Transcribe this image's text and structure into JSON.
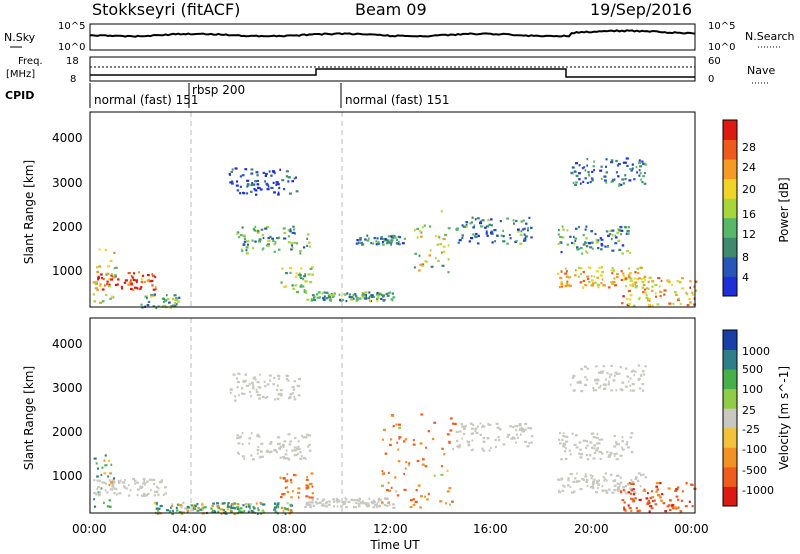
{
  "header": {
    "station": "Stokkseyri (fitACF)",
    "beam": "Beam 09",
    "date": "19/Sep/2016"
  },
  "noise_panel": {
    "left_label": "N.Sky",
    "left_ticks": [
      "10^5",
      "10^0"
    ],
    "right_ticks": [
      "10^5",
      "10^0"
    ],
    "right_label": "N.Search"
  },
  "freq_panel": {
    "left_label_1": "Freq.",
    "left_label_2": "[MHz]",
    "left_ticks": [
      "18",
      "8"
    ],
    "right_ticks": [
      "60",
      "0"
    ],
    "right_label": "Nave"
  },
  "cpid": {
    "label": "CPID",
    "segments": [
      "normal (fast) 151",
      "rbsp 200",
      "normal (fast) 151"
    ]
  },
  "time_axis": {
    "label": "Time UT",
    "ticks": [
      "00:00",
      "04:00",
      "08:00",
      "12:00",
      "16:00",
      "20:00",
      "00:00"
    ]
  },
  "range_axis": {
    "label": "Slant Range [km]",
    "ticks": [
      "1000",
      "2000",
      "3000",
      "4000"
    ]
  },
  "power_colorbar": {
    "label": "Power [dB]",
    "ticks": [
      "4",
      "8",
      "12",
      "16",
      "20",
      "24",
      "28"
    ],
    "colors": [
      "#1f2fd8",
      "#2856b8",
      "#3f8a6f",
      "#58b86a",
      "#a6d63a",
      "#f0d428",
      "#f59a22",
      "#ee5a1e",
      "#dd1a12"
    ]
  },
  "velocity_colorbar": {
    "label": "Velocity [m s^-1]",
    "ticks": [
      "1000",
      "500",
      "100",
      "25",
      "-25",
      "-100",
      "-500",
      "-1000"
    ],
    "colors": [
      "#1a3fa6",
      "#2f7f8a",
      "#47b04a",
      "#8fcc47",
      "#c8c8c0",
      "#f2c23a",
      "#f29124",
      "#ef5d1e",
      "#dd1a12"
    ]
  },
  "chart_data": [
    {
      "type": "heatmap",
      "title": "Power",
      "xlabel": "Time UT",
      "ylabel": "Slant Range [km]",
      "x_range_hours": [
        0,
        24
      ],
      "y_range_km": [
        200,
        4500
      ],
      "colorbar_range_db": [
        0,
        32
      ],
      "echo_regions": [
        {
          "t_start": 0.1,
          "t_end": 2.6,
          "r_start": 600,
          "r_end": 1000,
          "level": 0.85
        },
        {
          "t_start": 0.1,
          "t_end": 1.0,
          "r_start": 300,
          "r_end": 1500,
          "level": 0.55
        },
        {
          "t_start": 2.0,
          "t_end": 3.5,
          "r_start": 200,
          "r_end": 500,
          "level": 0.4
        },
        {
          "t_start": 5.5,
          "t_end": 8.3,
          "r_start": 2700,
          "r_end": 3300,
          "level": 0.1
        },
        {
          "t_start": 5.8,
          "t_end": 8.7,
          "r_start": 1400,
          "r_end": 2000,
          "level": 0.35
        },
        {
          "t_start": 7.5,
          "t_end": 8.8,
          "r_start": 550,
          "r_end": 1100,
          "level": 0.45
        },
        {
          "t_start": 8.5,
          "t_end": 12.0,
          "r_start": 350,
          "r_end": 550,
          "level": 0.35
        },
        {
          "t_start": 10.5,
          "t_end": 12.5,
          "r_start": 1600,
          "r_end": 1800,
          "level": 0.2
        },
        {
          "t_start": 12.8,
          "t_end": 14.2,
          "r_start": 900,
          "r_end": 2400,
          "level": 0.5
        },
        {
          "t_start": 14.5,
          "t_end": 17.5,
          "r_start": 1600,
          "r_end": 2200,
          "level": 0.25
        },
        {
          "t_start": 18.5,
          "t_end": 21.5,
          "r_start": 1400,
          "r_end": 2000,
          "level": 0.3
        },
        {
          "t_start": 19.0,
          "t_end": 22.0,
          "r_start": 2900,
          "r_end": 3500,
          "level": 0.2
        },
        {
          "t_start": 18.5,
          "t_end": 22.0,
          "r_start": 650,
          "r_end": 1100,
          "level": 0.65
        },
        {
          "t_start": 21.0,
          "t_end": 24.0,
          "r_start": 250,
          "r_end": 900,
          "level": 0.7
        }
      ]
    },
    {
      "type": "heatmap",
      "title": "Velocity",
      "xlabel": "Time UT",
      "ylabel": "Slant Range [km]",
      "x_range_hours": [
        0,
        24
      ],
      "y_range_km": [
        200,
        4500
      ],
      "colorbar_range_ms": [
        -1000,
        1000
      ],
      "echo_regions": [
        {
          "t_start": 0.1,
          "t_end": 3.0,
          "r_start": 600,
          "r_end": 1000,
          "velocity": 0
        },
        {
          "t_start": 0.1,
          "t_end": 1.0,
          "r_start": 300,
          "r_end": 1500,
          "velocity": 200
        },
        {
          "t_start": 2.5,
          "t_end": 8.0,
          "r_start": 200,
          "r_end": 450,
          "velocity": 150
        },
        {
          "t_start": 5.5,
          "t_end": 8.3,
          "r_start": 2700,
          "r_end": 3300,
          "velocity": 0
        },
        {
          "t_start": 5.8,
          "t_end": 8.7,
          "r_start": 1400,
          "r_end": 2000,
          "velocity": 0
        },
        {
          "t_start": 7.5,
          "t_end": 8.8,
          "r_start": 550,
          "r_end": 1100,
          "velocity": -400
        },
        {
          "t_start": 8.5,
          "t_end": 12.0,
          "r_start": 350,
          "r_end": 550,
          "velocity": 0
        },
        {
          "t_start": 11.5,
          "t_end": 14.5,
          "r_start": 300,
          "r_end": 2400,
          "velocity": -300
        },
        {
          "t_start": 14.5,
          "t_end": 17.5,
          "r_start": 1600,
          "r_end": 2200,
          "velocity": 0
        },
        {
          "t_start": 18.5,
          "t_end": 21.5,
          "r_start": 1400,
          "r_end": 2000,
          "velocity": 0
        },
        {
          "t_start": 19.0,
          "t_end": 22.0,
          "r_start": 2900,
          "r_end": 3500,
          "velocity": 0
        },
        {
          "t_start": 18.5,
          "t_end": 22.0,
          "r_start": 650,
          "r_end": 1100,
          "velocity": 0
        },
        {
          "t_start": 21.0,
          "t_end": 24.0,
          "r_start": 250,
          "r_end": 900,
          "velocity": -600
        }
      ]
    }
  ]
}
